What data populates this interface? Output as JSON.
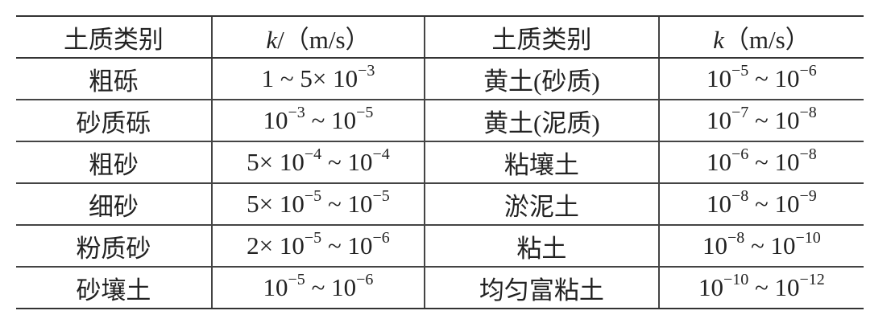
{
  "header": [
    [
      {
        "t": "土质类别"
      }
    ],
    [
      {
        "i": "k"
      },
      {
        "t": "/（m/s）"
      }
    ],
    [
      {
        "t": "土质类别"
      }
    ],
    [
      {
        "i": "k"
      },
      {
        "t": "（m/s）"
      }
    ]
  ],
  "rows": [
    [
      [
        {
          "t": "粗砾"
        }
      ],
      [
        {
          "t": "1 ~ 5× 10"
        },
        {
          "sup": "−3"
        }
      ],
      [
        {
          "t": "黄土(砂质)"
        }
      ],
      [
        {
          "t": "10"
        },
        {
          "sup": "−5"
        },
        {
          "t": " ~ 10"
        },
        {
          "sup": "−6"
        }
      ]
    ],
    [
      [
        {
          "t": "砂质砾"
        }
      ],
      [
        {
          "t": "10"
        },
        {
          "sup": "−3"
        },
        {
          "t": " ~ 10"
        },
        {
          "sup": "−5"
        }
      ],
      [
        {
          "t": "黄土(泥质)"
        }
      ],
      [
        {
          "t": "10"
        },
        {
          "sup": "−7"
        },
        {
          "t": " ~ 10"
        },
        {
          "sup": "−8"
        }
      ]
    ],
    [
      [
        {
          "t": "粗砂"
        }
      ],
      [
        {
          "t": "5× 10"
        },
        {
          "sup": "−4"
        },
        {
          "t": " ~ 10"
        },
        {
          "sup": "−4"
        }
      ],
      [
        {
          "t": "粘壤土"
        }
      ],
      [
        {
          "t": "10"
        },
        {
          "sup": "−6"
        },
        {
          "t": " ~ 10"
        },
        {
          "sup": "−8"
        }
      ]
    ],
    [
      [
        {
          "t": "细砂"
        }
      ],
      [
        {
          "t": "5× 10"
        },
        {
          "sup": "−5"
        },
        {
          "t": " ~ 10"
        },
        {
          "sup": "−5"
        }
      ],
      [
        {
          "t": "淤泥土"
        }
      ],
      [
        {
          "t": "10"
        },
        {
          "sup": "−8"
        },
        {
          "t": " ~ 10"
        },
        {
          "sup": "−9"
        }
      ]
    ],
    [
      [
        {
          "t": "粉质砂"
        }
      ],
      [
        {
          "t": "2× 10"
        },
        {
          "sup": "−5"
        },
        {
          "t": " ~ 10"
        },
        {
          "sup": "−6"
        }
      ],
      [
        {
          "t": "粘土"
        }
      ],
      [
        {
          "t": "10"
        },
        {
          "sup": "−8"
        },
        {
          "t": " ~ 10"
        },
        {
          "sup": "−10"
        }
      ]
    ],
    [
      [
        {
          "t": "砂壤土"
        }
      ],
      [
        {
          "t": "10"
        },
        {
          "sup": "−5"
        },
        {
          "t": " ~ 10"
        },
        {
          "sup": "−6"
        }
      ],
      [
        {
          "t": "均匀富粘土"
        }
      ],
      [
        {
          "t": "10"
        },
        {
          "sup": "−10"
        },
        {
          "t": " ~ 10"
        },
        {
          "sup": "−12"
        }
      ]
    ]
  ]
}
